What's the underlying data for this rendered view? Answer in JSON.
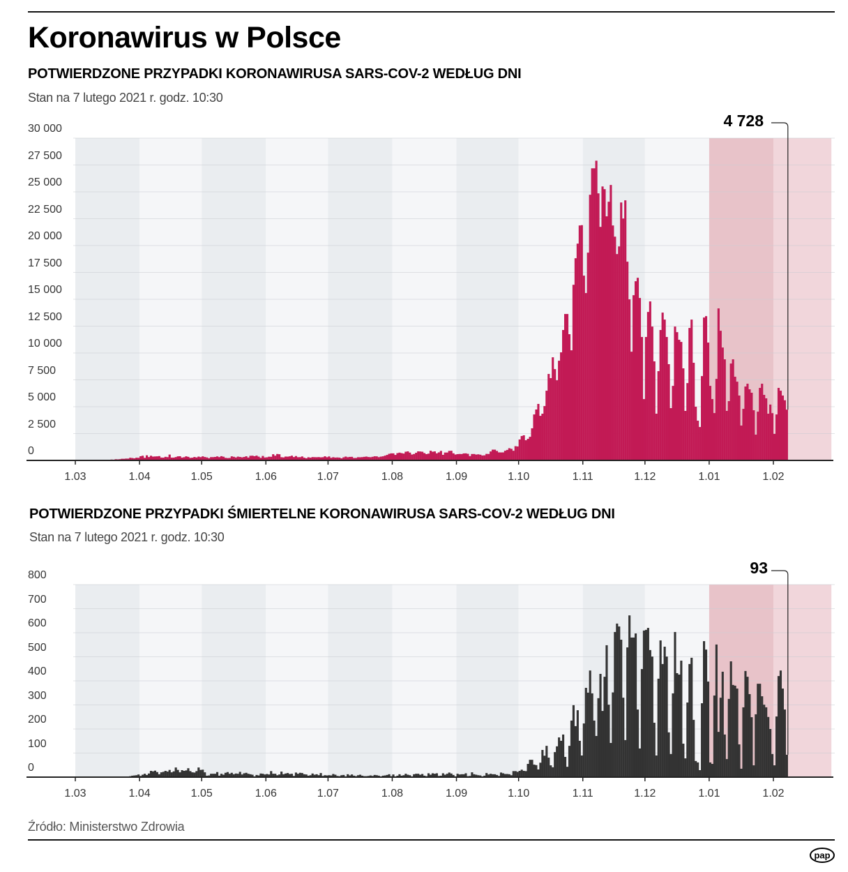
{
  "title": "Koronawirus w Polsce",
  "source": "Źródło: Ministerstwo Zdrowia",
  "logo": "pap",
  "chart_data": [
    {
      "type": "bar",
      "title": "POTWIERDZONE PRZYPADKI KORONAWIRUSA SARS-COV-2 WEDŁUG DNI",
      "subtitle": "Stan na 7 lutego 2021 r. godz. 10:30",
      "x_start": "2020-03-04",
      "x_end": "2021-02-07",
      "xlim": [
        "2020-03-01",
        "2021-02-28"
      ],
      "xtick_labels": [
        "1.03",
        "1.04",
        "1.05",
        "1.06",
        "1.07",
        "1.08",
        "1.09",
        "1.10",
        "1.11",
        "1.12",
        "1.01",
        "1.02"
      ],
      "yticks": [
        0,
        2500,
        5000,
        7500,
        10000,
        12500,
        15000,
        17500,
        20000,
        22500,
        25000,
        27500,
        30000
      ],
      "ytick_labels": [
        "0",
        "2 500",
        "5 000",
        "7 500",
        "10 000",
        "12 500",
        "15 000",
        "17 500",
        "20 000",
        "22 500",
        "25 000",
        "27 500",
        "30 000"
      ],
      "ylim": [
        0,
        30000
      ],
      "grid": true,
      "bar_color": "#c21a55",
      "highlight_colors": {
        "january": "#e8c3c9",
        "february": "#f1d6db"
      },
      "last_value_label": "4 728",
      "values": [
        1,
        0,
        4,
        1,
        6,
        6,
        5,
        9,
        16,
        17,
        36,
        21,
        52,
        26,
        81,
        70,
        111,
        98,
        115,
        152,
        150,
        170,
        168,
        249,
        224,
        193,
        256,
        243,
        392,
        437,
        244,
        475,
        311,
        435,
        357,
        370,
        380,
        401,
        268,
        260,
        336,
        306,
        545,
        263,
        263,
        313,
        380,
        390,
        263,
        301,
        381,
        333,
        237,
        258,
        319,
        276,
        356,
        306,
        381,
        318,
        280,
        207,
        307,
        307,
        326,
        374,
        308,
        396,
        345,
        241,
        218,
        228,
        381,
        337,
        276,
        354,
        322,
        286,
        323,
        386,
        268,
        432,
        440,
        395,
        447,
        353,
        238,
        416,
        274,
        292,
        346,
        339,
        576,
        441,
        599,
        575,
        300,
        282,
        359,
        352,
        380,
        440,
        314,
        407,
        301,
        305,
        370,
        258,
        200,
        295,
        259,
        311,
        303,
        297,
        309,
        286,
        300,
        383,
        300,
        371,
        243,
        299,
        265,
        276,
        262,
        193,
        290,
        358,
        299,
        328,
        334,
        226,
        232,
        299,
        293,
        308,
        334,
        358,
        318,
        301,
        337,
        384,
        379,
        304,
        355,
        384,
        445,
        512,
        615,
        657,
        658,
        512,
        680,
        726,
        680,
        640,
        809,
        843,
        728,
        548,
        599,
        712,
        843,
        832,
        808,
        684,
        587,
        631,
        903,
        811,
        840,
        661,
        750,
        887,
        523,
        734,
        734,
        887,
        900,
        664,
        550,
        585,
        600,
        593,
        651,
        658,
        614,
        402,
        596,
        597,
        545,
        568,
        534,
        459,
        474,
        609,
        600,
        834,
        1002,
        1002,
        885,
        747,
        744,
        748,
        903,
        978,
        1136,
        1078,
        900,
        1326,
        1300,
        1950,
        2270,
        2340,
        1880,
        2010,
        2200,
        2990,
        4280,
        4740,
        5260,
        4150,
        4350,
        5060,
        6490,
        8050,
        7660,
        9600,
        8500,
        7460,
        9280,
        10060,
        12140,
        13630,
        13630,
        11750,
        10250,
        16350,
        18820,
        20180,
        21870,
        21900,
        17200,
        15580,
        19340,
        24730,
        27190,
        27190,
        27900,
        24860,
        21740,
        25500,
        25250,
        22720,
        24080,
        25640,
        21870,
        20830,
        19210,
        19920,
        24010,
        22520,
        24210,
        18500,
        14990,
        10120,
        15380,
        16680,
        17000,
        15120,
        11490,
        5710,
        11490,
        13820,
        14800,
        12460,
        9220,
        4350,
        8310,
        12140,
        13760,
        13110,
        11490,
        8960,
        4870,
        6940,
        12460,
        11940,
        11230,
        11030,
        8570,
        4610,
        7200,
        12330,
        13110,
        9090,
        5000,
        3700,
        3110,
        7850,
        13300,
        13430,
        10970,
        6940,
        5710,
        4410,
        7590,
        14150,
        12070,
        10510,
        9410,
        4610,
        5520,
        9020,
        9410,
        7790,
        7330,
        6040,
        3245,
        4800,
        6880,
        7140,
        6620,
        6300,
        4670,
        2400,
        4540,
        6750,
        7140,
        6100,
        5780,
        4350,
        5200,
        4400,
        2470,
        4280,
        6750,
        6490,
        6040,
        5600,
        4728
      ]
    },
    {
      "type": "bar",
      "title": "POTWIERDZONE PRZYPADKI ŚMIERTELNE KORONAWIRUSA SARS-COV-2 WEDŁUG DNI",
      "subtitle": "Stan na 7 lutego 2021 r. godz. 10:30",
      "x_start": "2020-03-04",
      "x_end": "2021-02-07",
      "xlim": [
        "2020-03-01",
        "2021-02-28"
      ],
      "xtick_labels": [
        "1.03",
        "1.04",
        "1.05",
        "1.06",
        "1.07",
        "1.08",
        "1.09",
        "1.10",
        "1.11",
        "1.12",
        "1.01",
        "1.02"
      ],
      "yticks": [
        0,
        100,
        200,
        300,
        400,
        500,
        600,
        700,
        800
      ],
      "ytick_labels": [
        "0",
        "100",
        "200",
        "300",
        "400",
        "500",
        "600",
        "700",
        "800"
      ],
      "ylim": [
        0,
        800
      ],
      "grid": true,
      "bar_color": "#333333",
      "highlight_colors": {
        "january": "#e8c3c9",
        "february": "#f1d6db"
      },
      "last_value_label": "93",
      "values": [
        0,
        0,
        0,
        0,
        0,
        0,
        0,
        0,
        1,
        1,
        1,
        0,
        1,
        1,
        1,
        0,
        2,
        0,
        1,
        2,
        2,
        2,
        1,
        4,
        6,
        7,
        8,
        11,
        5,
        10,
        14,
        9,
        15,
        26,
        24,
        27,
        21,
        12,
        20,
        22,
        26,
        23,
        30,
        20,
        24,
        40,
        30,
        20,
        29,
        26,
        28,
        37,
        25,
        20,
        19,
        25,
        40,
        30,
        31,
        20,
        6,
        7,
        14,
        14,
        14,
        21,
        6,
        14,
        10,
        18,
        21,
        14,
        18,
        12,
        15,
        14,
        22,
        11,
        16,
        18,
        14,
        12,
        10,
        3,
        9,
        7,
        15,
        14,
        11,
        13,
        11,
        25,
        14,
        14,
        8,
        11,
        23,
        12,
        15,
        17,
        13,
        14,
        5,
        19,
        14,
        18,
        17,
        12,
        11,
        6,
        8,
        15,
        10,
        12,
        8,
        17,
        5,
        8,
        7,
        8,
        7,
        13,
        10,
        5,
        4,
        8,
        9,
        3,
        12,
        7,
        11,
        6,
        4,
        8,
        10,
        6,
        4,
        4,
        5,
        7,
        5,
        9,
        8,
        6,
        1,
        6,
        7,
        9,
        12,
        4,
        11,
        3,
        6,
        12,
        6,
        8,
        14,
        10,
        8,
        3,
        12,
        14,
        14,
        10,
        13,
        6,
        4,
        16,
        10,
        16,
        14,
        16,
        5,
        6,
        16,
        10,
        14,
        19,
        15,
        9,
        3,
        14,
        11,
        12,
        12,
        16,
        4,
        5,
        20,
        12,
        10,
        8,
        7,
        3,
        6,
        17,
        11,
        14,
        12,
        12,
        9,
        5,
        19,
        16,
        13,
        13,
        12,
        8,
        25,
        25,
        22,
        26,
        31,
        26,
        25,
        55,
        72,
        72,
        52,
        50,
        32,
        60,
        113,
        89,
        130,
        81,
        49,
        41,
        104,
        128,
        165,
        151,
        177,
        84,
        43,
        130,
        235,
        299,
        212,
        278,
        151,
        90,
        223,
        371,
        351,
        443,
        348,
        235,
        171,
        328,
        429,
        275,
        417,
        548,
        301,
        142,
        352,
        603,
        638,
        626,
        571,
        330,
        154,
        539,
        672,
        580,
        580,
        597,
        281,
        119,
        449,
        609,
        612,
        620,
        528,
        501,
        226,
        90,
        409,
        568,
        470,
        542,
        501,
        186,
        96,
        348,
        603,
        432,
        426,
        484,
        139,
        78,
        310,
        470,
        496,
        238,
        67,
        61,
        29,
        307,
        565,
        530,
        397,
        61,
        55,
        339,
        551,
        188,
        330,
        438,
        177,
        75,
        325,
        481,
        383,
        380,
        368,
        136,
        35,
        290,
        441,
        417,
        345,
        249,
        49,
        261,
        388,
        388,
        336,
        301,
        290,
        250,
        200,
        96,
        49,
        252,
        420,
        443,
        368,
        281,
        93
      ]
    }
  ]
}
